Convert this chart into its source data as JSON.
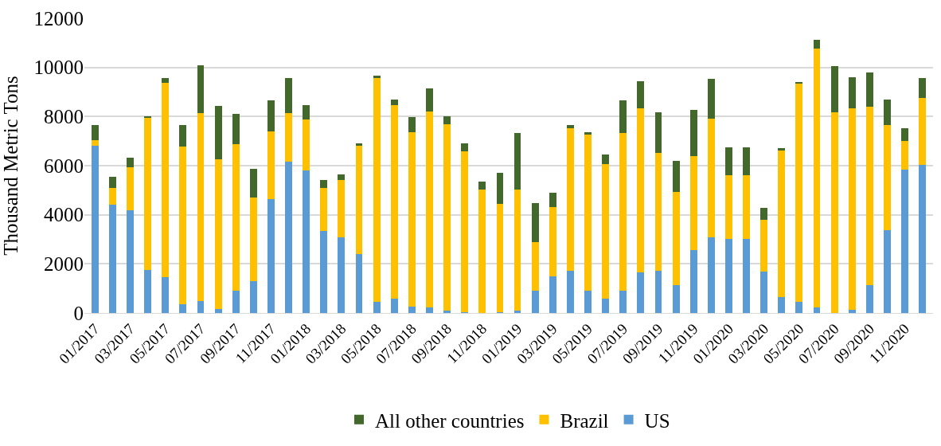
{
  "chart_data": {
    "type": "bar",
    "stacked": true,
    "ylabel": "Thousand Metric Tons",
    "ylim": [
      0,
      12000
    ],
    "yticks": [
      0,
      2000,
      4000,
      6000,
      8000,
      10000,
      12000
    ],
    "grid": "y",
    "legend": "bottom",
    "categories": [
      "01/2017",
      null,
      "03/2017",
      null,
      "05/2017",
      null,
      "07/2017",
      null,
      "09/2017",
      null,
      "11/2017",
      null,
      "01/2018",
      null,
      "03/2018",
      null,
      "05/2018",
      null,
      "07/2018",
      null,
      "09/2018",
      null,
      "11/2018",
      null,
      "01/2019",
      null,
      "03/2019",
      null,
      "05/2019",
      null,
      "07/2019",
      null,
      "09/2019",
      null,
      "11/2019",
      null,
      "01/2020",
      null,
      "03/2020",
      null,
      "05/2020",
      null,
      "07/2020",
      null,
      "09/2020",
      null,
      "11/2020",
      null
    ],
    "series": [
      {
        "name": "US",
        "color": "#5b9bd5",
        "values": [
          6800,
          4400,
          4200,
          1750,
          1450,
          350,
          480,
          150,
          900,
          1300,
          4650,
          6170,
          5800,
          3330,
          3090,
          2390,
          450,
          600,
          260,
          220,
          100,
          30,
          0,
          30,
          100,
          900,
          1480,
          1730,
          900,
          580,
          900,
          1660,
          1710,
          1120,
          2550,
          3080,
          3020,
          3020,
          1700,
          650,
          450,
          230,
          0,
          130,
          1150,
          3380,
          5840,
          6020
        ]
      },
      {
        "name": "Brazil",
        "color": "#ffc000",
        "values": [
          250,
          700,
          1750,
          6200,
          7930,
          6430,
          7650,
          6100,
          5960,
          3400,
          2750,
          1970,
          2090,
          1750,
          2320,
          4410,
          9130,
          7850,
          7090,
          7980,
          7600,
          6550,
          5030,
          4400,
          4940,
          2000,
          2840,
          5810,
          6350,
          5470,
          6440,
          6680,
          4810,
          3820,
          3850,
          4840,
          2600,
          2600,
          2090,
          5970,
          8900,
          10530,
          8180,
          8190,
          7260,
          4260,
          1160,
          2750
        ]
      },
      {
        "name": "All other countries",
        "color": "#43682b",
        "values": [
          600,
          450,
          380,
          70,
          200,
          870,
          1950,
          2170,
          1240,
          1160,
          1260,
          1420,
          590,
          340,
          240,
          120,
          100,
          250,
          620,
          940,
          300,
          340,
          330,
          1290,
          2300,
          1560,
          590,
          100,
          100,
          390,
          1310,
          1110,
          1660,
          1250,
          1860,
          1610,
          1140,
          1140,
          480,
          100,
          40,
          380,
          1890,
          1280,
          1370,
          1050,
          520,
          810
        ]
      }
    ]
  }
}
